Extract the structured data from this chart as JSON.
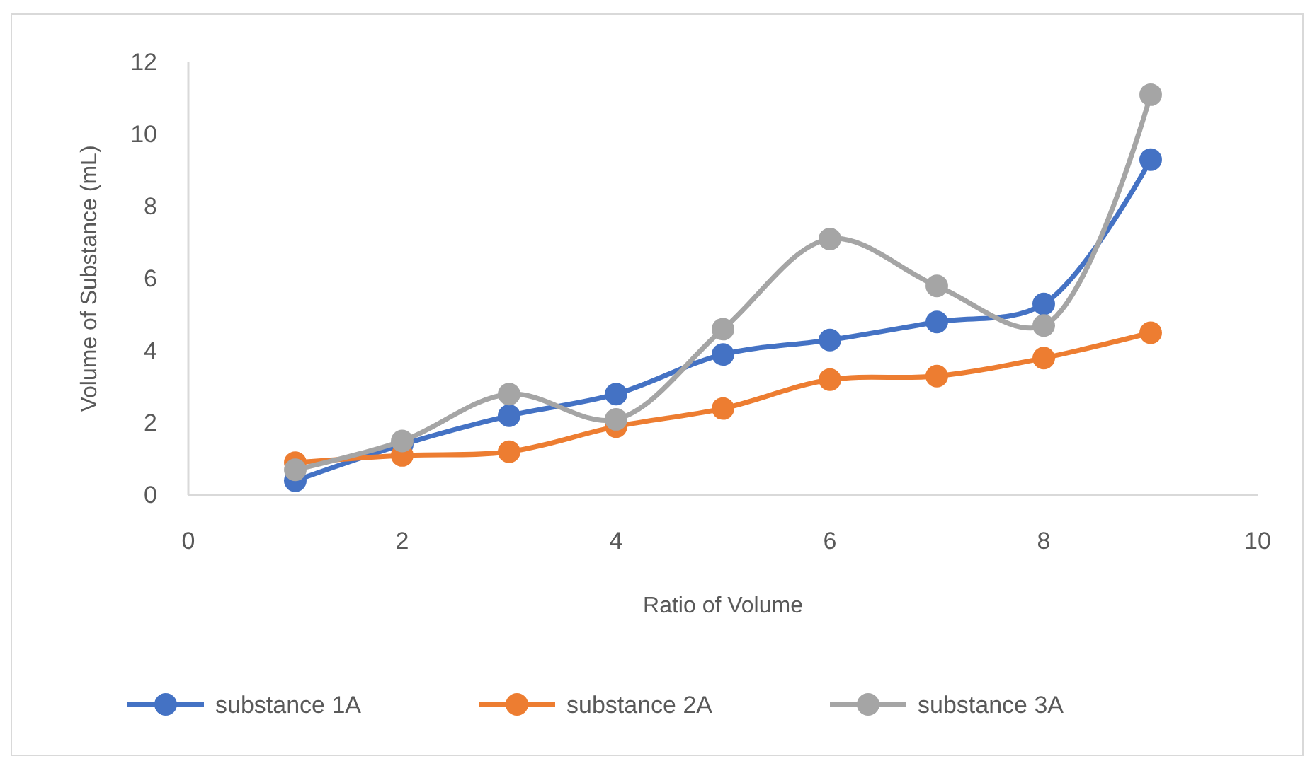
{
  "chart_data": {
    "type": "line",
    "xlabel": "Ratio of Volume",
    "ylabel": "Volume of Substance (mL)",
    "x": [
      1,
      2,
      3,
      4,
      5,
      6,
      7,
      8,
      9
    ],
    "xlim": [
      0,
      10
    ],
    "xticks": [
      0,
      2,
      4,
      6,
      8,
      10
    ],
    "ylim": [
      0,
      12
    ],
    "yticks": [
      0,
      2,
      4,
      6,
      8,
      10,
      12
    ],
    "marker": "circle",
    "legend": "bottom",
    "grid": false,
    "series": [
      {
        "name": "substance 1A",
        "color": "#4472c4",
        "values": [
          0.4,
          1.4,
          2.2,
          2.8,
          3.9,
          4.3,
          4.8,
          5.3,
          9.3
        ]
      },
      {
        "name": "substance 2A",
        "color": "#ed7d31",
        "values": [
          0.9,
          1.1,
          1.2,
          1.9,
          2.4,
          3.2,
          3.3,
          3.8,
          4.5
        ]
      },
      {
        "name": "substance 3A",
        "color": "#a5a5a5",
        "values": [
          0.7,
          1.5,
          2.8,
          2.1,
          4.6,
          7.1,
          5.8,
          4.7,
          11.1
        ]
      }
    ]
  }
}
